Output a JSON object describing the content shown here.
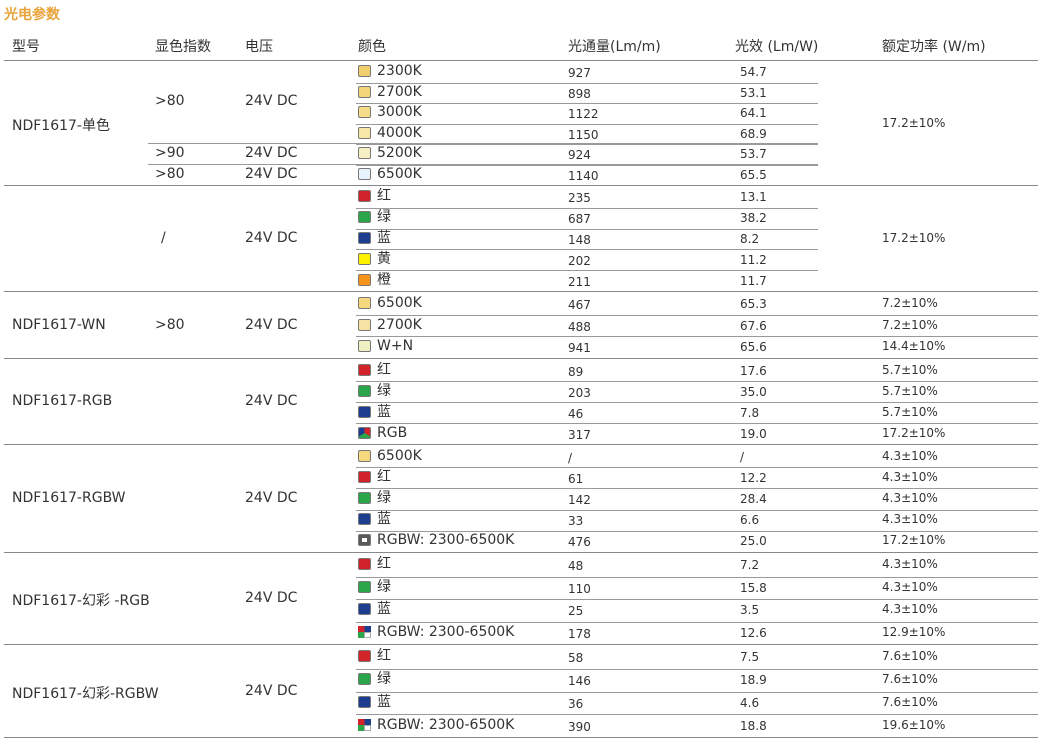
{
  "section_title": "光电参数",
  "next_section_title": "",
  "headers": {
    "model": "型号",
    "cri": "显色指数",
    "voltage": "电压",
    "color": "颜色",
    "flux": "光通量(Lm/m)",
    "efficacy": "光效 (Lm/W)",
    "power": "额定功率 (W/m)"
  },
  "swatch_colors": {
    "2300K": "#f2cf6e",
    "2700K": "#f4d67a",
    "3000K": "#f6dc88",
    "4000K": "#f8e8a8",
    "5200K": "#f6efc4",
    "6500K": "#e6f3fb",
    "6500K_group": "#f6d97e",
    "red": "#d2232a",
    "green": "#2aa64a",
    "blue": "#1d3d8f",
    "yellow": "#fff200",
    "orange": "#f7941d",
    "wn_2700K": "#f8e3a6",
    "wn_mix": "#eef0c2",
    "rgbw_white": "#5a5a5a"
  },
  "groups": [
    {
      "model": "NDF1617-单色",
      "rows": [
        {
          "cri": ">80",
          "voltage": "24V DC",
          "color": "2300K",
          "swatch": "2300K",
          "flux": "927",
          "eff": "54.7"
        },
        {
          "cri": "",
          "voltage": "",
          "color": "2700K",
          "swatch": "2700K",
          "flux": "898",
          "eff": "53.1"
        },
        {
          "cri": "",
          "voltage": "",
          "color": "3000K",
          "swatch": "3000K",
          "flux": "1122",
          "eff": "64.1"
        },
        {
          "cri": "",
          "voltage": "",
          "color": "4000K",
          "swatch": "4000K",
          "flux": "1150",
          "eff": "68.9"
        },
        {
          "cri": ">90",
          "voltage": "24V DC",
          "color": "5200K",
          "swatch": "5200K",
          "flux": "924",
          "eff": "53.7"
        },
        {
          "cri": ">80",
          "voltage": "24V DC",
          "color": "6500K",
          "swatch": "6500K",
          "flux": "1140",
          "eff": "65.5"
        }
      ],
      "power": "17.2±10%"
    },
    {
      "model": "",
      "cri": "/",
      "voltage": "24V DC",
      "rows": [
        {
          "color": "红",
          "swatch": "red",
          "flux": "235",
          "eff": "13.1"
        },
        {
          "color": "绿",
          "swatch": "green",
          "flux": "687",
          "eff": "38.2"
        },
        {
          "color": "蓝",
          "swatch": "blue",
          "flux": "148",
          "eff": "8.2"
        },
        {
          "color": "黄",
          "swatch": "yellow",
          "flux": "202",
          "eff": "11.2"
        },
        {
          "color": "橙",
          "swatch": "orange",
          "flux": "211",
          "eff": "11.7"
        }
      ],
      "power": "17.2±10%"
    },
    {
      "model": "NDF1617-WN",
      "cri": ">80",
      "voltage": "24V DC",
      "rows": [
        {
          "color": "6500K",
          "swatch": "6500K_group",
          "flux": "467",
          "eff": "65.3",
          "power": "7.2±10%"
        },
        {
          "color": "2700K",
          "swatch": "wn_2700K",
          "flux": "488",
          "eff": "67.6",
          "power": "7.2±10%"
        },
        {
          "color": "W+N",
          "swatch": "wn_mix",
          "flux": "941",
          "eff": "65.6",
          "power": "14.4±10%"
        }
      ]
    },
    {
      "model": "NDF1617-RGB",
      "voltage": "24V DC",
      "rows": [
        {
          "color": "红",
          "swatch": "red",
          "flux": "89",
          "eff": "17.6",
          "power": "5.7±10%"
        },
        {
          "color": "绿",
          "swatch": "green",
          "flux": "203",
          "eff": "35.0",
          "power": "5.7±10%"
        },
        {
          "color": "蓝",
          "swatch": "blue",
          "flux": "46",
          "eff": "7.8",
          "power": "5.7±10%"
        },
        {
          "color": "RGB",
          "swatch": "rgb",
          "flux": "317",
          "eff": "19.0",
          "power": "17.2±10%"
        }
      ]
    },
    {
      "model": "NDF1617-RGBW",
      "voltage": "24V DC",
      "rows": [
        {
          "color": "6500K",
          "swatch": "6500K_group",
          "flux": "/",
          "eff": "/",
          "power": "4.3±10%"
        },
        {
          "color": "红",
          "swatch": "red",
          "flux": "61",
          "eff": "12.2",
          "power": "4.3±10%"
        },
        {
          "color": "绿",
          "swatch": "green",
          "flux": "142",
          "eff": "28.4",
          "power": "4.3±10%"
        },
        {
          "color": "蓝",
          "swatch": "blue",
          "flux": "33",
          "eff": "6.6",
          "power": "4.3±10%"
        },
        {
          "color": "RGBW: 2300-6500K",
          "swatch": "rgbw_white",
          "flux": "476",
          "eff": "25.0",
          "power": "17.2±10%"
        }
      ]
    },
    {
      "model": "NDF1617-幻彩 -RGB",
      "voltage": "24V DC",
      "rows": [
        {
          "color": "红",
          "swatch": "red",
          "flux": "48",
          "eff": "7.2",
          "power": "4.3±10%"
        },
        {
          "color": "绿",
          "swatch": "green",
          "flux": "110",
          "eff": "15.8",
          "power": "4.3±10%"
        },
        {
          "color": "蓝",
          "swatch": "blue",
          "flux": "25",
          "eff": "3.5",
          "power": "4.3±10%"
        },
        {
          "color": "RGBW: 2300-6500K",
          "swatch": "rgbw_multi",
          "flux": "178",
          "eff": "12.6",
          "power": "12.9±10%"
        }
      ]
    },
    {
      "model": "NDF1617-幻彩-RGBW",
      "voltage": "24V DC",
      "rows": [
        {
          "color": "红",
          "swatch": "red",
          "flux": "58",
          "eff": "7.5",
          "power": "7.6±10%"
        },
        {
          "color": "绿",
          "swatch": "green",
          "flux": "146",
          "eff": "18.9",
          "power": "7.6±10%"
        },
        {
          "color": "蓝",
          "swatch": "blue",
          "flux": "36",
          "eff": "4.6",
          "power": "7.6±10%"
        },
        {
          "color": "RGBW: 2300-6500K",
          "swatch": "rgbw_multi",
          "flux": "390",
          "eff": "18.8",
          "power": "19.6±10%"
        }
      ]
    }
  ]
}
